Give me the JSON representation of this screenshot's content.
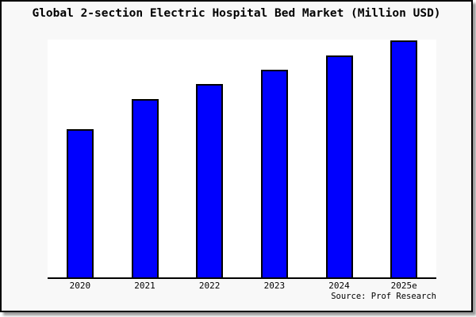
{
  "title": "Global 2-section Electric Hospital Bed Market (Million USD)",
  "source": "Source: Prof Research",
  "colors": {
    "bar_fill": "#0000FE",
    "bar_border": "#000000",
    "axis": "#000000",
    "plot_background": "#FFFFFF",
    "page_background": "#F8F8F8",
    "border": "#000000",
    "shadow": "#999999",
    "text": "#000000"
  },
  "chart_data": {
    "type": "bar",
    "title": "Global 2-section Electric Hospital Bed Market (Million USD)",
    "categories": [
      "2020",
      "2021",
      "2022",
      "2023",
      "2024",
      "2025e"
    ],
    "values": [
      62.5,
      75.0,
      81.2,
      87.3,
      93.5,
      99.8
    ],
    "value_units": "relative index, % of 2025e bar (no y-axis scale shown in image)",
    "xlabel": "",
    "ylabel": "",
    "ylim": [
      0,
      100
    ],
    "grid": false,
    "legend_position": "none",
    "y_axis_ticks_shown": false,
    "bar_color": "#0000FE",
    "source_note": "Source: Prof Research"
  }
}
